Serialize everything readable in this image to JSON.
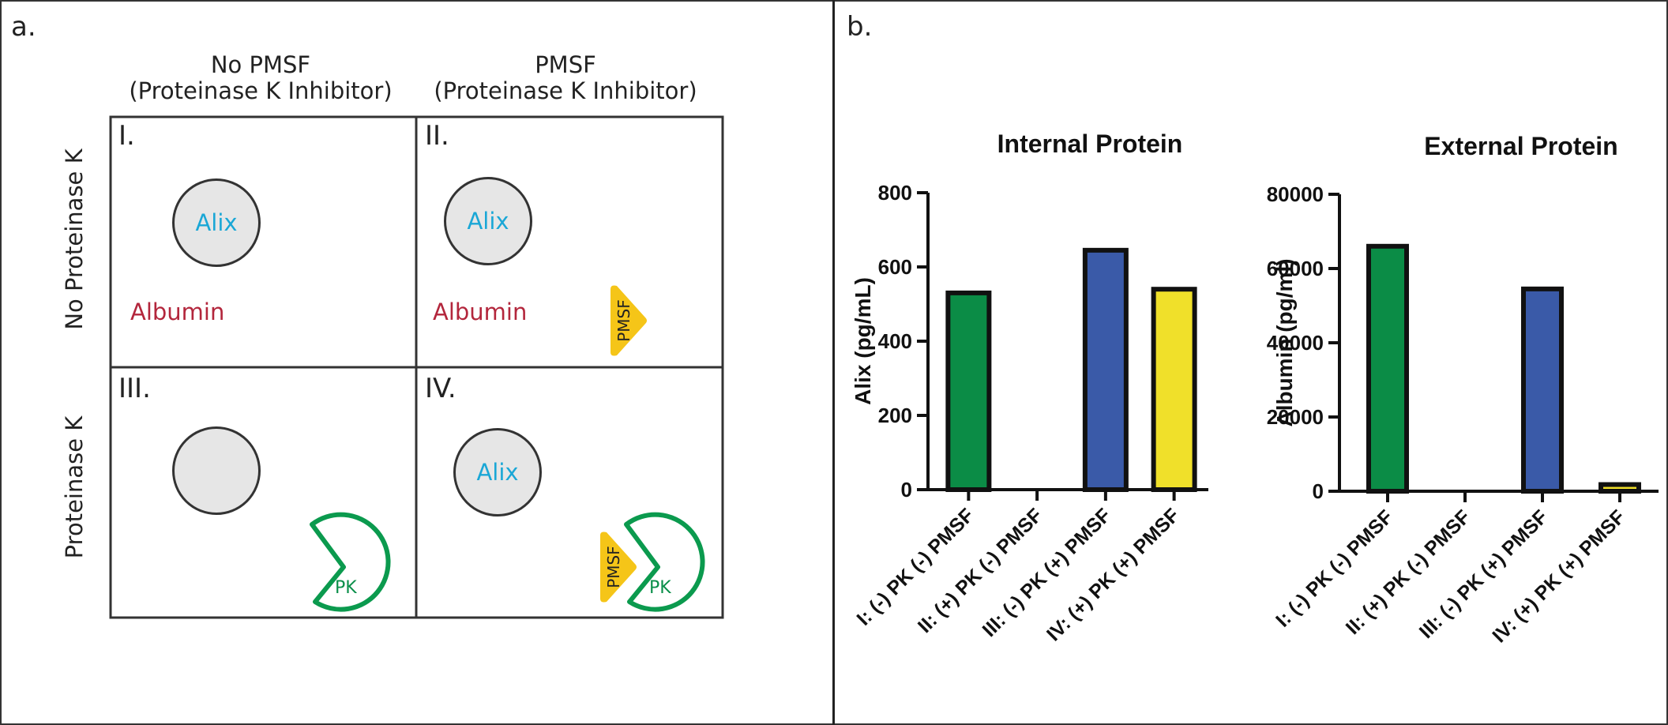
{
  "panel_a": {
    "letter": "a.",
    "col_headers": [
      {
        "line1": "No PMSF",
        "line2": "(Proteinase K Inhibitor)"
      },
      {
        "line1": "PMSF",
        "line2": "(Proteinase K Inhibitor)"
      }
    ],
    "row_headers": [
      "No Proteinase K",
      "Proteinase K"
    ],
    "cells": [
      {
        "numeral": "I.",
        "vesicle_label": "Alix",
        "albumin": "Albumin"
      },
      {
        "numeral": "II.",
        "vesicle_label": "Alix",
        "albumin": "Albumin",
        "pmsf": "PMSF"
      },
      {
        "numeral": "III.",
        "pk": "PK"
      },
      {
        "numeral": "IV.",
        "vesicle_label": "Alix",
        "pmsf": "PMSF",
        "pk": "PK"
      }
    ],
    "colors": {
      "alix": "#1aa7d6",
      "albumin": "#b3263c",
      "pk": "#0b8f4a",
      "pmsf": "#f5c518",
      "vesicle_fill": "#e6e6e6"
    }
  },
  "panel_b": {
    "letter": "b."
  },
  "chart_data": [
    {
      "type": "bar",
      "title": "Internal Protein",
      "ylabel": "Alix (pg/mL)",
      "xlabel": "",
      "categories": [
        "I: (-) PK (-) PMSF",
        "II: (+) PK (-) PMSF",
        "III: (-) PK (+) PMSF",
        "IV: (+) PK (+) PMSF"
      ],
      "values": [
        530,
        0,
        645,
        540
      ],
      "colors": [
        "#0b8c46",
        "#0b8c46",
        "#3a5aa8",
        "#f0e02a"
      ],
      "ylim": [
        0,
        800
      ],
      "yticks": [
        0,
        200,
        400,
        600,
        800
      ],
      "ytick_labels": [
        "0",
        "200",
        "400",
        "600",
        "800"
      ],
      "grid": false
    },
    {
      "type": "bar",
      "title": "External Protein",
      "ylabel": "Albumin (pg/ml)",
      "xlabel": "",
      "categories": [
        "I: (-) PK (-) PMSF",
        "II: (+) PK (-) PMSF",
        "III: (-) PK (+) PMSF",
        "IV: (+) PK (+) PMSF"
      ],
      "values": [
        66000,
        0,
        54500,
        1800
      ],
      "colors": [
        "#0b8c46",
        "#0b8c46",
        "#3a5aa8",
        "#f0e02a"
      ],
      "ylim": [
        0,
        80000
      ],
      "yticks": [
        0,
        20000,
        40000,
        60000,
        80000
      ],
      "ytick_labels": [
        "0",
        "20000",
        "40000",
        "60000",
        "80000"
      ],
      "grid": false
    }
  ]
}
